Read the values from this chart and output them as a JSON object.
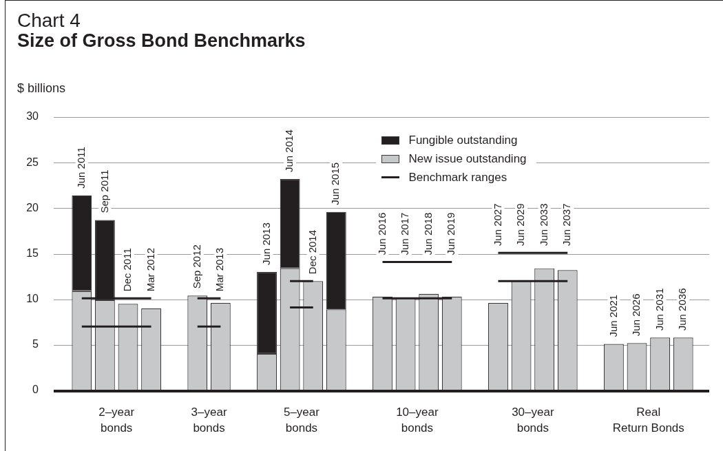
{
  "chart_data": {
    "type": "bar",
    "title": "Chart 4",
    "subtitle": "Size of Gross Bond Benchmarks",
    "ylabel": "$ billions",
    "categories": [
      "Jun 2011",
      "Sep 2011",
      "Dec 2011",
      "Mar 2012",
      null,
      "Sep 2012",
      "Mar 2013",
      null,
      "Jun 2013",
      "Jun 2014",
      "Dec 2014",
      "Jun 2015",
      null,
      "Jun 2016",
      "Jun 2017",
      "Jun 2018",
      "Jun 2019",
      null,
      "Jun 2027",
      "Jun 2029",
      "Jun 2033",
      "Jun 2037",
      null,
      "Jun 2021",
      "Jun 2026",
      "Jun 2031",
      "Jun 2036"
    ],
    "series": [
      {
        "name": "New issue outstanding",
        "color": "#c7c8ca",
        "values": [
          10.9,
          9.9,
          9.5,
          9.0,
          null,
          10.4,
          9.6,
          null,
          4.0,
          13.4,
          12.0,
          8.9,
          null,
          10.3,
          10.1,
          10.6,
          10.3,
          null,
          9.6,
          12.0,
          13.4,
          13.2,
          null,
          5.1,
          5.2,
          5.8,
          5.8
        ]
      },
      {
        "name": "Fungible outstanding",
        "color": "#231f20",
        "values": [
          10.5,
          8.8,
          null,
          null,
          null,
          null,
          null,
          null,
          9.0,
          9.8,
          null,
          10.7,
          null,
          null,
          null,
          null,
          null,
          null,
          null,
          null,
          null,
          null,
          null,
          null,
          null,
          null,
          null
        ]
      },
      {
        "name": "Benchmark ranges",
        "type": "line",
        "color": "#231f20",
        "values": [
          10.1,
          10.1,
          10.1,
          10.1,
          null,
          10.1,
          10.1,
          null,
          null,
          12.0,
          12.0,
          null,
          null,
          14.1,
          14.1,
          14.1,
          14.1,
          null,
          15.1,
          15.1,
          15.1,
          15.1,
          null,
          null,
          null,
          null,
          null
        ]
      },
      {
        "type": "line",
        "color": "#231f20",
        "values": [
          7.0,
          7.0,
          7.0,
          7.0,
          null,
          7.0,
          7.0,
          null,
          null,
          9.1,
          9.1,
          null,
          null,
          10.1,
          10.1,
          10.1,
          10.1,
          null,
          12.0,
          12.0,
          12.0,
          12.0,
          null,
          null,
          null,
          null,
          null
        ]
      }
    ],
    "stacked": true,
    "ylim": [
      0,
      30
    ],
    "yticks": [
      0,
      5,
      10,
      15,
      20,
      25,
      30
    ],
    "grid": "y",
    "legend": "top",
    "marker": "none",
    "line_style": "solid",
    "annotations": [
      "2–year\nbonds",
      "3–year\nbonds",
      "5–year\nbonds",
      "10–year\nbonds",
      "30–year\nbonds",
      "Real\nReturn Bonds"
    ]
  }
}
